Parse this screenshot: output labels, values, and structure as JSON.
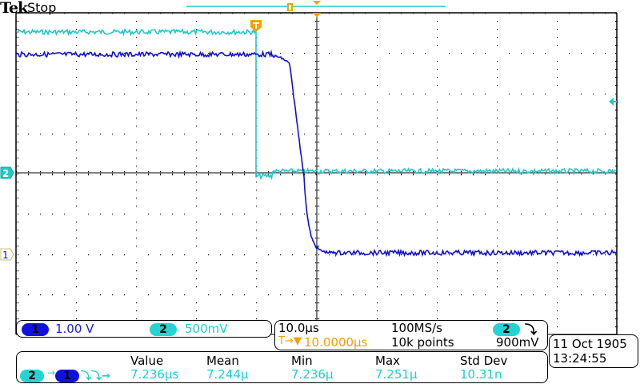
{
  "header": {
    "brand": "Tek",
    "acquisition_state": "Stop"
  },
  "colors": {
    "ch1": "#1111cc",
    "ch2": "#20c8c8",
    "trigger": "#f5a000",
    "graticule": "#000000"
  },
  "graticule": {
    "h_divisions": 10,
    "v_divisions": 8
  },
  "markers": {
    "ch1_ground_label": "1",
    "ch2_ground_label": "2",
    "trigger_marker_label": "T"
  },
  "channel_readout": {
    "ch1": {
      "badge": "1",
      "scale": "1.00 V"
    },
    "ch2": {
      "badge": "2",
      "scale": "500mV"
    }
  },
  "timebase_readout": {
    "horizontal_scale": "10.0µs",
    "sample_rate": "100MS/s",
    "trigger_source_badge": "2",
    "trigger_slope_icon": "falling-edge",
    "trigger_slope_glyph": "⤵",
    "trigger_position_prefix": "T→▼",
    "trigger_position": "10.0000µs",
    "record_length": "10k points",
    "trigger_level": "900mV"
  },
  "datetime": {
    "date": "11 Oct  1905",
    "time": "13:24:55"
  },
  "measurement": {
    "source_badge": "2",
    "arrow": "→",
    "target_badge": "1",
    "type_icon_glyph": "⤵⤵→",
    "columns": [
      "Value",
      "Mean",
      "Min",
      "Max",
      "Std Dev"
    ],
    "values": [
      "7.236µs",
      "7.244µ",
      "7.236µ",
      "7.251µ",
      "10.31n"
    ]
  }
}
